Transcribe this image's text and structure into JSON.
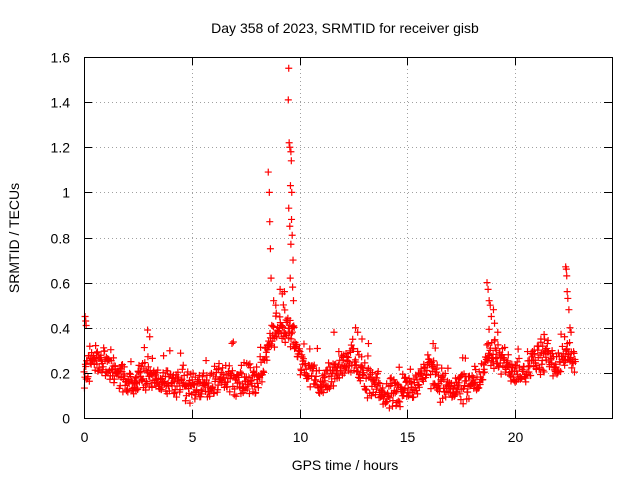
{
  "chart_data": {
    "type": "scatter",
    "title": "Day 358 of 2023, SRMTID for receiver gisb",
    "xlabel": "GPS time / hours",
    "ylabel": "SRMTID / TECUs",
    "xlim": [
      0,
      24.5
    ],
    "ylim": [
      0,
      1.6
    ],
    "x_ticks": [
      0,
      5,
      10,
      15,
      20
    ],
    "y_ticks": [
      0,
      0.2,
      0.4,
      0.6,
      0.8,
      1,
      1.2,
      1.4,
      1.6
    ],
    "x_tick_labels": [
      "0",
      "5",
      "10",
      "15",
      "20"
    ],
    "y_tick_labels": [
      "0",
      "0.2",
      "0.4",
      "0.6",
      "0.8",
      "1",
      "1.2",
      "1.4",
      "1.6"
    ],
    "grid": true,
    "marker": "+",
    "color": "#ff0000",
    "series": [
      {
        "name": "SRMTID",
        "baseline_profile": [
          [
            0.0,
            0.17
          ],
          [
            0.3,
            0.25
          ],
          [
            0.8,
            0.27
          ],
          [
            1.2,
            0.22
          ],
          [
            1.8,
            0.18
          ],
          [
            2.5,
            0.15
          ],
          [
            3.0,
            0.2
          ],
          [
            3.5,
            0.16
          ],
          [
            4.5,
            0.16
          ],
          [
            5.0,
            0.13
          ],
          [
            6.0,
            0.15
          ],
          [
            6.5,
            0.19
          ],
          [
            7.0,
            0.17
          ],
          [
            8.0,
            0.16
          ],
          [
            8.5,
            0.28
          ],
          [
            9.0,
            0.42
          ],
          [
            9.6,
            0.38
          ],
          [
            10.2,
            0.22
          ],
          [
            11.0,
            0.15
          ],
          [
            11.5,
            0.19
          ],
          [
            12.0,
            0.25
          ],
          [
            12.5,
            0.27
          ],
          [
            13.0,
            0.18
          ],
          [
            13.5,
            0.13
          ],
          [
            14.5,
            0.11
          ],
          [
            15.0,
            0.14
          ],
          [
            15.5,
            0.17
          ],
          [
            16.0,
            0.22
          ],
          [
            16.5,
            0.15
          ],
          [
            17.5,
            0.13
          ],
          [
            18.3,
            0.16
          ],
          [
            18.8,
            0.3
          ],
          [
            19.3,
            0.26
          ],
          [
            20.0,
            0.21
          ],
          [
            20.5,
            0.22
          ],
          [
            21.0,
            0.26
          ],
          [
            21.5,
            0.27
          ],
          [
            22.0,
            0.23
          ],
          [
            22.5,
            0.3
          ],
          [
            22.8,
            0.22
          ]
        ],
        "start_hour": 0.0,
        "end_hour": 22.8,
        "sample_count": 1100,
        "spread": 0.06,
        "peaks": [
          [
            0.05,
            0.45
          ],
          [
            0.08,
            0.43
          ],
          [
            0.1,
            0.41
          ],
          [
            2.95,
            0.39
          ],
          [
            3.05,
            0.36
          ],
          [
            8.55,
            1.09
          ],
          [
            8.6,
            1.0
          ],
          [
            8.62,
            0.87
          ],
          [
            8.65,
            0.75
          ],
          [
            8.68,
            0.62
          ],
          [
            8.8,
            0.52
          ],
          [
            8.9,
            0.5
          ],
          [
            9.1,
            0.57
          ],
          [
            9.2,
            0.55
          ],
          [
            9.3,
            0.56
          ],
          [
            9.5,
            1.55
          ],
          [
            9.48,
            1.41
          ],
          [
            9.52,
            1.22
          ],
          [
            9.55,
            1.2
          ],
          [
            9.6,
            1.18
          ],
          [
            9.62,
            1.14
          ],
          [
            9.58,
            1.03
          ],
          [
            9.64,
            1.0
          ],
          [
            9.5,
            0.93
          ],
          [
            9.63,
            0.88
          ],
          [
            9.55,
            0.85
          ],
          [
            9.66,
            0.81
          ],
          [
            9.6,
            0.77
          ],
          [
            9.7,
            0.7
          ],
          [
            9.57,
            0.62
          ],
          [
            9.68,
            0.58
          ],
          [
            9.72,
            0.52
          ],
          [
            11.6,
            0.38
          ],
          [
            12.6,
            0.4
          ],
          [
            12.7,
            0.38
          ],
          [
            12.9,
            0.35
          ],
          [
            13.2,
            0.33
          ],
          [
            16.2,
            0.33
          ],
          [
            16.3,
            0.31
          ],
          [
            18.7,
            0.6
          ],
          [
            18.75,
            0.57
          ],
          [
            18.8,
            0.52
          ],
          [
            18.85,
            0.5
          ],
          [
            18.9,
            0.45
          ],
          [
            19.0,
            0.48
          ],
          [
            19.05,
            0.42
          ],
          [
            19.2,
            0.38
          ],
          [
            21.2,
            0.35
          ],
          [
            21.35,
            0.37
          ],
          [
            21.5,
            0.33
          ],
          [
            22.35,
            0.67
          ],
          [
            22.38,
            0.66
          ],
          [
            22.4,
            0.63
          ],
          [
            22.42,
            0.56
          ],
          [
            22.45,
            0.53
          ],
          [
            22.5,
            0.48
          ],
          [
            22.55,
            0.4
          ],
          [
            22.6,
            0.38
          ],
          [
            22.3,
            0.36
          ]
        ]
      }
    ]
  }
}
